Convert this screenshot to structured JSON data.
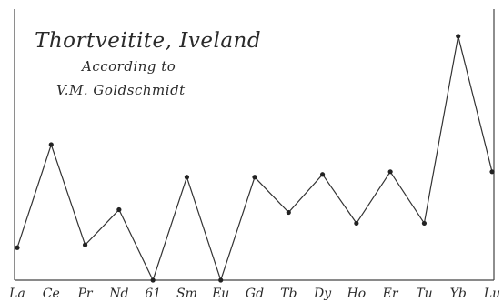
{
  "chart_data": {
    "type": "line",
    "title": "Thortveitite, Iveland",
    "subtitle": [
      "According to",
      "V.M. Goldschmidt"
    ],
    "categories": [
      "La",
      "Ce",
      "Pr",
      "Nd",
      "61",
      "Sm",
      "Eu",
      "Gd",
      "Tb",
      "Dy",
      "Ho",
      "Er",
      "Tu",
      "Yb",
      "Lu"
    ],
    "series": [
      {
        "values": [
          1.2,
          5.0,
          1.3,
          2.6,
          0.0,
          3.8,
          0.0,
          3.8,
          2.5,
          3.9,
          2.1,
          4.0,
          2.1,
          9.0,
          4.0
        ]
      }
    ],
    "xlabel": "",
    "ylabel": "",
    "ylim": [
      0,
      10
    ],
    "grid": false,
    "legend": "none"
  }
}
